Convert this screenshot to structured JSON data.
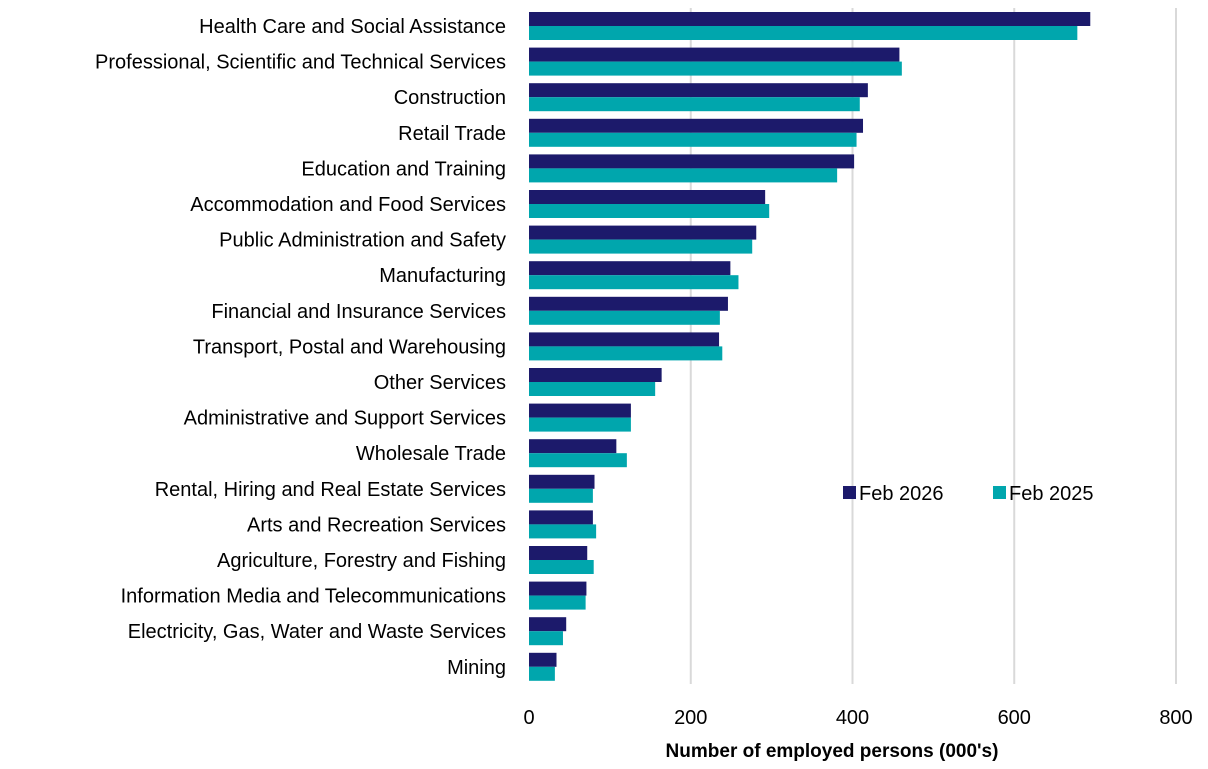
{
  "chart_data": {
    "type": "bar",
    "orientation": "horizontal",
    "title": "",
    "xlabel": "Number of employed persons (000's)",
    "ylabel": "",
    "xlim": [
      0,
      800
    ],
    "xticks": [
      0,
      200,
      400,
      600,
      800
    ],
    "grid": "vertical",
    "legend_position": "right",
    "categories": [
      "Health Care and Social Assistance",
      "Professional, Scientific and Technical Services",
      "Construction",
      "Retail Trade",
      "Education and Training",
      "Accommodation and Food Services",
      "Public Administration and Safety",
      "Manufacturing",
      "Financial and Insurance Services",
      "Transport, Postal and Warehousing",
      "Other Services",
      "Administrative and Support Services",
      "Wholesale Trade",
      "Rental, Hiring and Real Estate Services",
      "Arts and Recreation Services",
      "Agriculture, Forestry and Fishing",
      "Information Media and Telecommunications",
      "Electricity, Gas, Water and Waste Services",
      "Mining"
    ],
    "series": [
      {
        "name": "Feb 2026",
        "color": "#1c1a6b",
        "values": [
          694,
          458,
          419,
          413,
          402,
          292,
          281,
          249,
          246,
          235,
          164,
          126,
          108,
          81,
          79,
          72,
          71,
          46,
          34
        ]
      },
      {
        "name": "Feb 2025",
        "color": "#00a6ad",
        "values": [
          678,
          461,
          409,
          405,
          381,
          297,
          276,
          259,
          236,
          239,
          156,
          126,
          121,
          79,
          83,
          80,
          70,
          42,
          32
        ]
      }
    ]
  }
}
